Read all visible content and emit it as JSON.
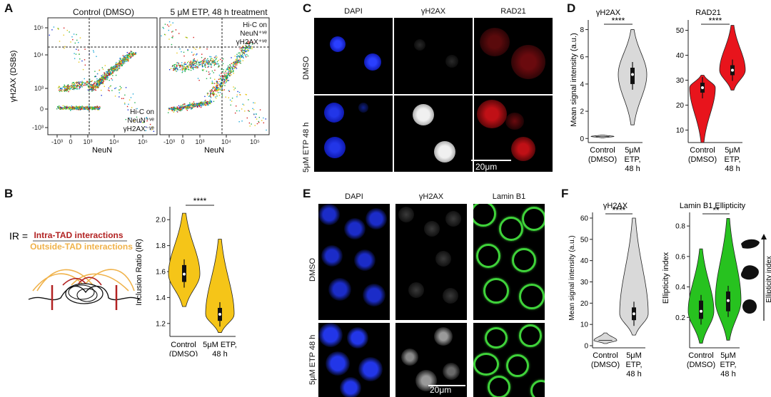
{
  "panel_letters": {
    "a": "A",
    "b": "B",
    "c": "C",
    "d": "D",
    "e": "E",
    "f": "F"
  },
  "panel_a": {
    "left_title": "Control (DMSO)",
    "right_title": "5 μM ETP, 48 h treatment",
    "ylabel": "γH2AX (DSBs)",
    "xlabel": "NeuN",
    "yticks": [
      "10⁵",
      "10⁴",
      "10³",
      "0",
      "-10³"
    ],
    "xticks_left": [
      "-10³",
      "0",
      "10³",
      "10⁴",
      "10⁵"
    ],
    "xticks_right": [
      "-10³",
      "0",
      "10³",
      "10⁴",
      "10⁵"
    ],
    "gate_left": {
      "l1": "Hi-C on",
      "l2": "NeuN⁺ᵛᵉ",
      "l3": "γH2AX⁻ᵛᵉ"
    },
    "gate_right": {
      "l1": "Hi-C on",
      "l2": "NeuN⁺ᵛᵉ",
      "l3": "γH2AX⁺ᵛᵉ"
    }
  },
  "panel_b": {
    "ir_label": "IR =",
    "numerator": "Intra-TAD interactions",
    "denominator": "Outside-TAD interactions",
    "ylabel": "Inclusion Ratio (IR)",
    "yticks": [
      "2.0",
      "1.8",
      "1.6",
      "1.4",
      "1.2"
    ],
    "cat1_l1": "Control",
    "cat1_l2": "(DMSO)",
    "cat2_l1": "5μM ETP,",
    "cat2_l2": "48 h",
    "sig": "****",
    "colors": {
      "fill": "#f5c518",
      "numerator": "#b22222",
      "denominator": "#f0b24a"
    }
  },
  "panel_c": {
    "col1": "DAPI",
    "col2": "γH2AX",
    "col3": "RAD21",
    "row1": "DMSO",
    "row2": "5μM ETP 48 h",
    "scalebar": "20μm"
  },
  "panel_d": {
    "left_title": "γH2AX",
    "right_title": "RAD21",
    "ylabel": "Mean signal intensity (a.u.)",
    "left_yticks": [
      "8",
      "6",
      "4",
      "2",
      "0"
    ],
    "right_yticks": [
      "50",
      "40",
      "30",
      "20",
      "10"
    ],
    "cat1_l1": "Control",
    "cat1_l2": "(DMSO)",
    "cat2_l1": "5μM",
    "cat2_l2": "ETP,",
    "cat2_l3": "48 h",
    "sig_left": "****",
    "sig_right": "****",
    "colors": {
      "gray": "#d9d9d9",
      "red": "#e8141c"
    }
  },
  "panel_e": {
    "col1": "DAPI",
    "col2": "γH2AX",
    "col3": "Lamin B1",
    "row1": "DMSO",
    "row2": "5μM ETP 48 h",
    "scalebar": "20μm"
  },
  "panel_f": {
    "left_title": "γH2AX",
    "right_title": "Lamin B1 Ellipticity",
    "left_ylabel": "Mean signal intensity (a.u.)",
    "right_ylabel": "Ellipticity index",
    "left_yticks": [
      "60",
      "50",
      "40",
      "30",
      "20",
      "10",
      "0"
    ],
    "right_yticks": [
      "0.8",
      "0.6",
      "0.4",
      "0.2"
    ],
    "cat1_l1": "Control",
    "cat1_l2": "(DMSO)",
    "cat2_l1": "5μM",
    "cat2_l2": "ETP,",
    "cat2_l3": "48 h",
    "sig_left": "****",
    "sig_right": "**",
    "side_label": "Ellipticity index",
    "colors": {
      "gray": "#d9d9d9",
      "green": "#27c21f"
    }
  },
  "chart_data": [
    {
      "type": "scatter",
      "panel": "A-left",
      "xlabel": "NeuN",
      "ylabel": "γH2AX (DSBs)",
      "scale": "biexponential",
      "xlim": [
        -1000,
        100000
      ],
      "ylim": [
        -1000,
        100000
      ]
    },
    {
      "type": "scatter",
      "panel": "A-right",
      "xlabel": "NeuN",
      "ylabel": "γH2AX (DSBs)",
      "scale": "biexponential",
      "xlim": [
        -1000,
        100000
      ],
      "ylim": [
        -1000,
        100000
      ]
    },
    {
      "type": "violin",
      "panel": "B",
      "ylabel": "Inclusion Ratio (IR)",
      "ylim": [
        1.1,
        2.1
      ],
      "series": [
        {
          "category": "Control (DMSO)",
          "min": 1.33,
          "max": 2.05,
          "median": 1.58,
          "q1": 1.52,
          "q3": 1.65
        },
        {
          "category": "5μM ETP, 48 h",
          "min": 1.13,
          "max": 1.85,
          "median": 1.27,
          "q1": 1.22,
          "q3": 1.32
        }
      ]
    },
    {
      "type": "violin",
      "panel": "D-γH2AX",
      "ylabel": "Mean signal intensity (a.u.)",
      "ylim": [
        -0.3,
        8.5
      ],
      "series": [
        {
          "category": "Control (DMSO)",
          "min": 0.05,
          "max": 0.25,
          "median": 0.15
        },
        {
          "category": "5μM ETP, 48 h",
          "min": 1.0,
          "max": 8.0,
          "median": 4.7,
          "q1": 4.0,
          "q3": 5.2
        }
      ]
    },
    {
      "type": "violin",
      "panel": "D-RAD21",
      "ylabel": "Mean signal intensity (a.u.)",
      "ylim": [
        5,
        53
      ],
      "series": [
        {
          "category": "Control (DMSO)",
          "min": 5,
          "max": 32,
          "median": 27,
          "q1": 25,
          "q3": 29
        },
        {
          "category": "5μM ETP, 48 h",
          "min": 26,
          "max": 52,
          "median": 34,
          "q1": 32,
          "q3": 36
        }
      ]
    },
    {
      "type": "violin",
      "panel": "F-γH2AX",
      "ylabel": "Mean signal intensity (a.u.)",
      "ylim": [
        -1,
        62
      ],
      "series": [
        {
          "category": "Control (DMSO)",
          "min": 1,
          "max": 6,
          "median": 2.5
        },
        {
          "category": "5μM ETP, 48 h",
          "min": 5,
          "max": 60,
          "median": 15,
          "q1": 12,
          "q3": 18
        }
      ]
    },
    {
      "type": "violin",
      "panel": "F-Lamin B1 Ellipticity",
      "ylabel": "Ellipticity index",
      "ylim": [
        0,
        0.88
      ],
      "series": [
        {
          "category": "Control (DMSO)",
          "min": 0.03,
          "max": 0.65,
          "median": 0.24,
          "q1": 0.19,
          "q3": 0.31
        },
        {
          "category": "5μM ETP, 48 h",
          "min": 0.05,
          "max": 0.85,
          "median": 0.31,
          "q1": 0.24,
          "q3": 0.37
        }
      ]
    }
  ]
}
